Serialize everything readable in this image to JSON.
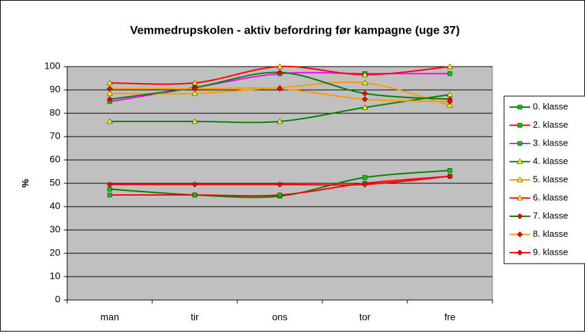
{
  "chart_data": {
    "type": "line",
    "title": "Vemmedrupskolen - aktiv befordring før kampagne (uge 37)",
    "y_label": "%",
    "categories": [
      "man",
      "tir",
      "ons",
      "tor",
      "fre"
    ],
    "ylim": [
      0,
      100
    ],
    "yticks": [
      0,
      10,
      20,
      30,
      40,
      50,
      60,
      70,
      80,
      90,
      100
    ],
    "grid": true,
    "smooth": true,
    "legend": "right",
    "series": [
      {
        "name": "0. klasse",
        "color": "#008000",
        "marker": "square",
        "marker_color": "#00cc00",
        "values": [
          47.5,
          45,
          44.5,
          52.5,
          55.5
        ]
      },
      {
        "name": "2. klasse",
        "color": "#ff0000",
        "marker": "square",
        "marker_color": "#00cc00",
        "values": [
          45,
          45,
          45,
          50,
          53
        ]
      },
      {
        "name": "3. klasse",
        "color": "#ff00ff",
        "marker": "square",
        "marker_color": "#00cc00",
        "values": [
          85,
          91,
          97,
          97,
          97
        ]
      },
      {
        "name": "4. klasse",
        "color": "#008000",
        "marker": "triangle",
        "marker_color": "#ffff00",
        "values": [
          76.5,
          76.5,
          76.5,
          82.5,
          88
        ]
      },
      {
        "name": "5. klasse",
        "color": "#ff9900",
        "marker": "triangle",
        "marker_color": "#ffff00",
        "values": [
          88.5,
          88.5,
          91,
          93,
          83.5
        ]
      },
      {
        "name": "6. klasse",
        "color": "#ff0000",
        "marker": "triangle",
        "marker_color": "#ffff00",
        "values": [
          93,
          93,
          100,
          96.5,
          100
        ]
      },
      {
        "name": "7. klasse",
        "color": "#008000",
        "marker": "diamond",
        "marker_color": "#ff0000",
        "values": [
          86,
          91,
          97.5,
          88.5,
          86
        ]
      },
      {
        "name": "8. klasse",
        "color": "#ff9900",
        "marker": "diamond",
        "marker_color": "#ff0000",
        "values": [
          90.5,
          90.5,
          90.5,
          86,
          85
        ]
      },
      {
        "name": "9. klasse",
        "color": "#ff0000",
        "marker": "diamond",
        "marker_color": "#ff0000",
        "values": [
          49.5,
          49.5,
          49.5,
          49.5,
          53
        ]
      }
    ]
  }
}
